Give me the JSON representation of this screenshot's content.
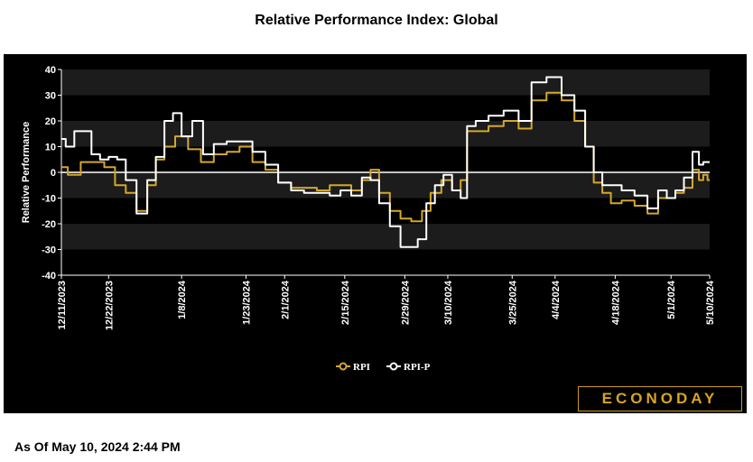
{
  "title": "Relative Performance Index: Global",
  "footer": "As Of May 10, 2024 2:44 PM",
  "brand": "ECONODAY",
  "colors": {
    "rpi": "#d4a72c",
    "rpi_p": "#ffffff",
    "background": "#000000",
    "band": "#1c1c1c"
  },
  "chart_data": {
    "type": "line",
    "ylabel": "Relative Performance",
    "xlabel": "",
    "ylim": [
      -40,
      40
    ],
    "yticks": [
      40,
      30,
      20,
      10,
      0,
      -10,
      -20,
      -30,
      -40
    ],
    "xtick_labels": [
      "12/11/2023",
      "12/22/2023",
      "1/8/2024",
      "1/23/2024",
      "2/1/2024",
      "2/15/2024",
      "2/29/2024",
      "3/10/2024",
      "3/25/2024",
      "4/4/2024",
      "4/18/2024",
      "5/1/2024",
      "5/10/2024"
    ],
    "legend": {
      "position": "bottom-center",
      "entries": [
        "RPI",
        "RPI-P"
      ]
    },
    "series": [
      {
        "name": "RPI",
        "color": "#d4a72c",
        "points": [
          [
            "12/11/2023",
            2
          ],
          [
            "12/14/2023",
            -1
          ],
          [
            "12/17/2023",
            4
          ],
          [
            "12/20/2023",
            4
          ],
          [
            "12/22/2023",
            2
          ],
          [
            "12/25/2023",
            -5
          ],
          [
            "12/27/2023",
            -8
          ],
          [
            "12/30/2023",
            -15
          ],
          [
            "1/1/2024",
            -5
          ],
          [
            "1/3/2024",
            5
          ],
          [
            "1/5/2024",
            10
          ],
          [
            "1/8/2024",
            14
          ],
          [
            "1/11/2024",
            9
          ],
          [
            "1/14/2024",
            4
          ],
          [
            "1/17/2024",
            7
          ],
          [
            "1/20/2024",
            8
          ],
          [
            "1/23/2024",
            10
          ],
          [
            "1/26/2024",
            4
          ],
          [
            "1/29/2024",
            1
          ],
          [
            "2/1/2024",
            -4
          ],
          [
            "2/4/2024",
            -6
          ],
          [
            "2/7/2024",
            -6
          ],
          [
            "2/10/2024",
            -7
          ],
          [
            "2/13/2024",
            -5
          ],
          [
            "2/15/2024",
            -5
          ],
          [
            "2/18/2024",
            -7
          ],
          [
            "2/20/2024",
            -3
          ],
          [
            "2/22/2024",
            1
          ],
          [
            "2/24/2024",
            -8
          ],
          [
            "2/27/2024",
            -15
          ],
          [
            "2/29/2024",
            -18
          ],
          [
            "3/3/2024",
            -19
          ],
          [
            "3/5/2024",
            -15
          ],
          [
            "3/7/2024",
            -8
          ],
          [
            "3/10/2024",
            -3
          ],
          [
            "3/12/2024",
            -7
          ],
          [
            "3/14/2024",
            -3
          ],
          [
            "3/15/2024",
            16
          ],
          [
            "3/18/2024",
            16
          ],
          [
            "3/21/2024",
            18
          ],
          [
            "3/25/2024",
            20
          ],
          [
            "3/28/2024",
            17
          ],
          [
            "3/31/2024",
            28
          ],
          [
            "4/4/2024",
            31
          ],
          [
            "4/7/2024",
            28
          ],
          [
            "4/10/2024",
            20
          ],
          [
            "4/12/2024",
            10
          ],
          [
            "4/14/2024",
            -4
          ],
          [
            "4/16/2024",
            -8
          ],
          [
            "4/18/2024",
            -12
          ],
          [
            "4/21/2024",
            -11
          ],
          [
            "4/24/2024",
            -13
          ],
          [
            "4/27/2024",
            -16
          ],
          [
            "4/29/2024",
            -10
          ],
          [
            "5/1/2024",
            -10
          ],
          [
            "5/3/2024",
            -8
          ],
          [
            "5/5/2024",
            -6
          ],
          [
            "5/7/2024",
            1
          ],
          [
            "5/8/2024",
            -3
          ],
          [
            "5/9/2024",
            -1
          ],
          [
            "5/10/2024",
            -3
          ]
        ]
      },
      {
        "name": "RPI-P",
        "color": "#ffffff",
        "points": [
          [
            "12/11/2023",
            13
          ],
          [
            "12/13/2023",
            10
          ],
          [
            "12/15/2023",
            16
          ],
          [
            "12/17/2023",
            16
          ],
          [
            "12/19/2023",
            7
          ],
          [
            "12/21/2023",
            5
          ],
          [
            "12/23/2023",
            6
          ],
          [
            "12/25/2023",
            5
          ],
          [
            "12/27/2023",
            -3
          ],
          [
            "12/30/2023",
            -16
          ],
          [
            "1/1/2024",
            -3
          ],
          [
            "1/3/2024",
            6
          ],
          [
            "1/5/2024",
            20
          ],
          [
            "1/7/2024",
            23
          ],
          [
            "1/9/2024",
            14
          ],
          [
            "1/12/2024",
            20
          ],
          [
            "1/14/2024",
            7
          ],
          [
            "1/17/2024",
            11
          ],
          [
            "1/20/2024",
            12
          ],
          [
            "1/23/2024",
            12
          ],
          [
            "1/26/2024",
            8
          ],
          [
            "1/29/2024",
            3
          ],
          [
            "2/1/2024",
            -4
          ],
          [
            "2/4/2024",
            -7
          ],
          [
            "2/7/2024",
            -8
          ],
          [
            "2/10/2024",
            -8
          ],
          [
            "2/13/2024",
            -9
          ],
          [
            "2/15/2024",
            -7
          ],
          [
            "2/18/2024",
            -9
          ],
          [
            "2/20/2024",
            -2
          ],
          [
            "2/22/2024",
            -3
          ],
          [
            "2/24/2024",
            -12
          ],
          [
            "2/27/2024",
            -21
          ],
          [
            "2/29/2024",
            -29
          ],
          [
            "3/2/2024",
            -29
          ],
          [
            "3/4/2024",
            -26
          ],
          [
            "3/6/2024",
            -12
          ],
          [
            "3/8/2024",
            -5
          ],
          [
            "3/10/2024",
            -1
          ],
          [
            "3/12/2024",
            -7
          ],
          [
            "3/14/2024",
            -10
          ],
          [
            "3/15/2024",
            18
          ],
          [
            "3/18/2024",
            20
          ],
          [
            "3/21/2024",
            22
          ],
          [
            "3/25/2024",
            24
          ],
          [
            "3/28/2024",
            20
          ],
          [
            "3/31/2024",
            35
          ],
          [
            "4/4/2024",
            37
          ],
          [
            "4/7/2024",
            30
          ],
          [
            "4/10/2024",
            24
          ],
          [
            "4/12/2024",
            10
          ],
          [
            "4/14/2024",
            0
          ],
          [
            "4/16/2024",
            -5
          ],
          [
            "4/18/2024",
            -5
          ],
          [
            "4/21/2024",
            -7
          ],
          [
            "4/24/2024",
            -9
          ],
          [
            "4/27/2024",
            -14
          ],
          [
            "4/29/2024",
            -7
          ],
          [
            "5/1/2024",
            -10
          ],
          [
            "5/3/2024",
            -7
          ],
          [
            "5/5/2024",
            -2
          ],
          [
            "5/7/2024",
            8
          ],
          [
            "5/8/2024",
            3
          ],
          [
            "5/9/2024",
            4
          ],
          [
            "5/10/2024",
            4
          ]
        ]
      }
    ]
  }
}
